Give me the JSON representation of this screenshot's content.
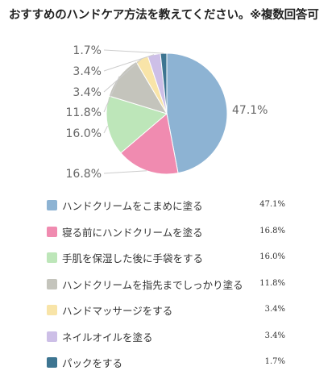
{
  "chart_data": {
    "type": "pie",
    "title": "おすすめのハンドケア方法を教えてください。※複数回答可",
    "categories": [
      "ハンドクリームをこまめに塗る",
      "寝る前にハンドクリームを塗る",
      "手肌を保湿した後に手袋をする",
      "ハンドクリームを指先までしっかり塗る",
      "ハンドマッサージをする",
      "ネイルオイルを塗る",
      "パックをする"
    ],
    "values": [
      47.1,
      16.8,
      16.0,
      11.8,
      3.4,
      3.4,
      1.7
    ],
    "value_labels": [
      "47.1%",
      "16.8%",
      "16.0%",
      "11.8%",
      "3.4%",
      "3.4%",
      "1.7%"
    ],
    "legend_values": [
      "47.1%",
      "16.8%",
      "16.0%",
      "11.8%",
      "3.4%",
      "3.4%",
      "1.7%"
    ],
    "colors": [
      "#8db3d3",
      "#f08bb0",
      "#bde6b9",
      "#c4c4bc",
      "#f8e4a8",
      "#cdbfe7",
      "#3d7591"
    ],
    "legend_position": "bottom"
  }
}
